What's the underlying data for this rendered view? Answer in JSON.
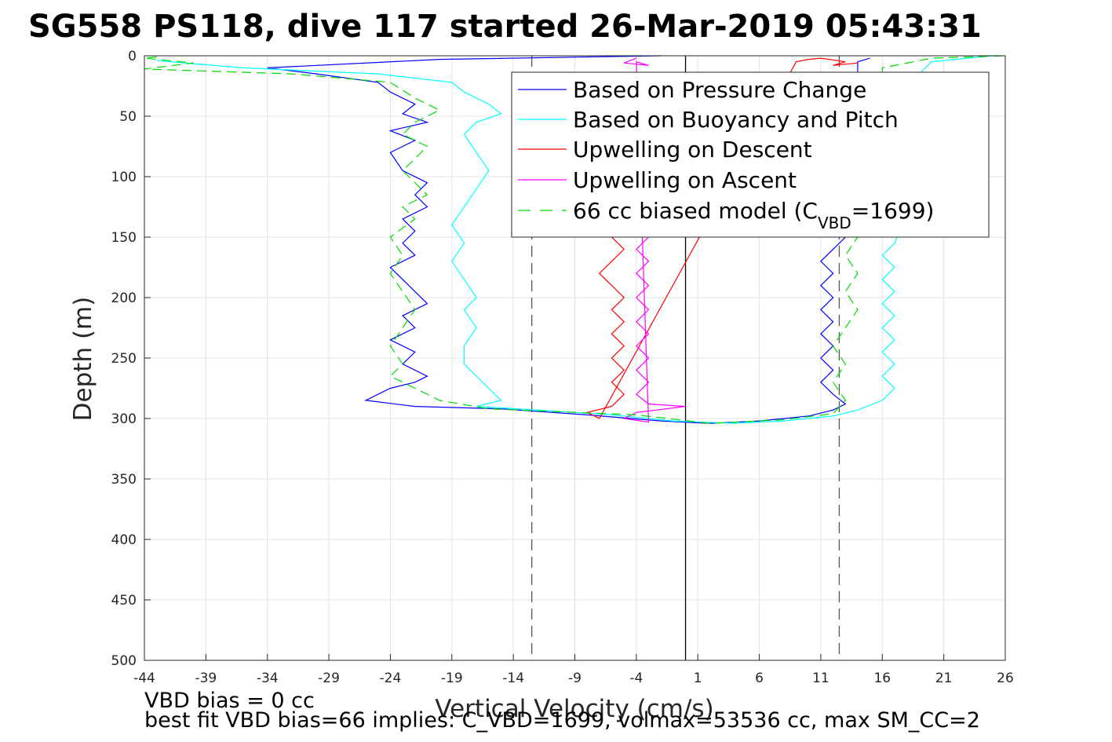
{
  "title": "SG558 PS118, dive 117 started 26-Mar-2019 05:43:31",
  "footnotes": {
    "line1": "VBD bias = 0 cc",
    "line2": "best fit VBD bias=66 implies: C_VBD=1699, volmax=53536 cc, max SM_CC=2"
  },
  "chart_data": {
    "type": "line",
    "title": "SG558 PS118, dive 117 started 26-Mar-2019 05:43:31",
    "xlabel": "Vertical Velocity (cm/s)",
    "ylabel": "Depth (m)",
    "xlim": [
      -44,
      26
    ],
    "ylim": [
      0,
      500
    ],
    "y_reversed": true,
    "grid": true,
    "xticks": [
      -44,
      -39,
      -34,
      -29,
      -24,
      -19,
      -14,
      -9,
      -4,
      1,
      6,
      11,
      16,
      21,
      26
    ],
    "yticks": [
      0,
      50,
      100,
      150,
      200,
      250,
      300,
      350,
      400,
      450,
      500
    ],
    "legend_position": "top-right",
    "legend": [
      {
        "label": "Based on Pressure Change",
        "color": "#0000ff",
        "style": "solid"
      },
      {
        "label": "Based on Buoyancy and Pitch",
        "color": "#00ffff",
        "style": "solid"
      },
      {
        "label": "Upwelling on Descent",
        "color": "#ff0000",
        "style": "solid"
      },
      {
        "label": "Upwelling on Ascent",
        "color": "#ff00ff",
        "style": "solid"
      },
      {
        "label_prefix": "66 cc biased model (C",
        "label_sub": "VBD",
        "label_suffix": "=1699)",
        "color": "#00dd00",
        "style": "dashed"
      }
    ],
    "reference_lines": [
      {
        "x": 0,
        "color": "#000000",
        "style": "solid"
      },
      {
        "x": -12.5,
        "color": "#555555",
        "style": "dashed"
      },
      {
        "x": 12.5,
        "color": "#555555",
        "style": "dashed"
      }
    ],
    "series": [
      {
        "color": "#0000ff",
        "points": [
          [
            -2,
            0
          ],
          [
            -20,
            3
          ],
          [
            -34,
            10
          ],
          [
            -30,
            15
          ],
          [
            -25,
            22
          ],
          [
            -24,
            30
          ],
          [
            -22,
            40
          ],
          [
            -23,
            48
          ],
          [
            -21,
            55
          ],
          [
            -24,
            62
          ],
          [
            -22,
            70
          ],
          [
            -24,
            80
          ],
          [
            -23,
            95
          ],
          [
            -21,
            105
          ],
          [
            -22,
            115
          ],
          [
            -21,
            125
          ],
          [
            -23,
            135
          ],
          [
            -22,
            145
          ],
          [
            -23,
            155
          ],
          [
            -22,
            165
          ],
          [
            -24,
            175
          ],
          [
            -23,
            185
          ],
          [
            -22,
            195
          ],
          [
            -21,
            205
          ],
          [
            -23,
            215
          ],
          [
            -22,
            225
          ],
          [
            -24,
            235
          ],
          [
            -22,
            245
          ],
          [
            -23,
            255
          ],
          [
            -21,
            265
          ],
          [
            -22,
            270
          ],
          [
            -24,
            275
          ],
          [
            -26,
            285
          ],
          [
            -22,
            290
          ],
          [
            -15,
            292
          ],
          [
            -8,
            297
          ],
          [
            -2,
            302
          ],
          [
            2,
            304
          ],
          [
            6,
            302
          ],
          [
            10,
            298
          ],
          [
            12,
            293
          ],
          [
            13,
            288
          ],
          [
            12,
            280
          ],
          [
            11,
            270
          ],
          [
            12,
            260
          ],
          [
            11,
            250
          ],
          [
            12,
            240
          ],
          [
            11,
            230
          ],
          [
            12,
            220
          ],
          [
            11,
            210
          ],
          [
            12,
            200
          ],
          [
            11,
            190
          ],
          [
            12,
            180
          ],
          [
            11,
            170
          ],
          [
            12,
            160
          ],
          [
            13,
            150
          ],
          [
            12,
            130
          ],
          [
            13,
            110
          ],
          [
            12,
            90
          ],
          [
            13,
            70
          ],
          [
            12,
            50
          ],
          [
            13,
            30
          ],
          [
            14,
            15
          ],
          [
            14,
            5
          ],
          [
            15,
            2
          ]
        ]
      },
      {
        "color": "#00ffff",
        "points": [
          [
            -43,
            4
          ],
          [
            -36,
            10
          ],
          [
            -25,
            15
          ],
          [
            -19,
            22
          ],
          [
            -18,
            30
          ],
          [
            -16,
            40
          ],
          [
            -15,
            48
          ],
          [
            -17,
            55
          ],
          [
            -18,
            65
          ],
          [
            -17,
            80
          ],
          [
            -16,
            95
          ],
          [
            -17,
            110
          ],
          [
            -18,
            125
          ],
          [
            -19,
            140
          ],
          [
            -18,
            155
          ],
          [
            -19,
            170
          ],
          [
            -18,
            185
          ],
          [
            -17,
            200
          ],
          [
            -18,
            210
          ],
          [
            -17,
            225
          ],
          [
            -18,
            240
          ],
          [
            -18,
            255
          ],
          [
            -17,
            265
          ],
          [
            -16,
            275
          ],
          [
            -15,
            285
          ],
          [
            -17,
            290
          ],
          [
            -12,
            293
          ],
          [
            -6,
            297
          ],
          [
            -1,
            302
          ],
          [
            4,
            304
          ],
          [
            8,
            302
          ],
          [
            12,
            298
          ],
          [
            14,
            293
          ],
          [
            16,
            285
          ],
          [
            17,
            275
          ],
          [
            16,
            265
          ],
          [
            17,
            255
          ],
          [
            16,
            245
          ],
          [
            17,
            235
          ],
          [
            16,
            225
          ],
          [
            17,
            215
          ],
          [
            16,
            205
          ],
          [
            17,
            195
          ],
          [
            16,
            185
          ],
          [
            17,
            175
          ],
          [
            16,
            165
          ],
          [
            17,
            155
          ],
          [
            18,
            130
          ],
          [
            17,
            110
          ],
          [
            18,
            90
          ],
          [
            19,
            60
          ],
          [
            20,
            35
          ],
          [
            19,
            15
          ],
          [
            20,
            5
          ],
          [
            25,
            0
          ]
        ]
      },
      {
        "color": "#ff0000",
        "points": [
          [
            -6,
            150
          ],
          [
            -5,
            160
          ],
          [
            -6,
            170
          ],
          [
            -7,
            180
          ],
          [
            -6,
            190
          ],
          [
            -5,
            200
          ],
          [
            -6,
            210
          ],
          [
            -5,
            220
          ],
          [
            -6,
            230
          ],
          [
            -5,
            240
          ],
          [
            -6,
            250
          ],
          [
            -5,
            260
          ],
          [
            -6,
            270
          ],
          [
            -5,
            280
          ],
          [
            -6,
            290
          ],
          [
            -8,
            295
          ],
          [
            -7,
            300
          ],
          [
            9,
            5
          ],
          [
            10,
            3
          ],
          [
            11,
            2
          ],
          [
            13,
            5
          ],
          [
            12,
            8
          ],
          [
            14,
            6
          ]
        ]
      },
      {
        "color": "#ff00ff",
        "points": [
          [
            -3,
            150
          ],
          [
            -4,
            160
          ],
          [
            -3,
            170
          ],
          [
            -4,
            180
          ],
          [
            -3,
            190
          ],
          [
            -4,
            200
          ],
          [
            -3,
            210
          ],
          [
            -4,
            220
          ],
          [
            -3,
            230
          ],
          [
            -4,
            240
          ],
          [
            -3,
            250
          ],
          [
            -4,
            260
          ],
          [
            -3,
            270
          ],
          [
            -4,
            280
          ],
          [
            -3,
            288
          ],
          [
            0,
            290
          ],
          [
            -4,
            295
          ],
          [
            -5,
            300
          ],
          [
            -3,
            303
          ],
          [
            -4,
            5
          ],
          [
            -3,
            8
          ],
          [
            -5,
            6
          ],
          [
            -4,
            2
          ]
        ]
      },
      {
        "color": "#00dd00",
        "dashed": true,
        "points": [
          [
            -43,
            1
          ],
          [
            -44,
            2
          ],
          [
            -40,
            6
          ],
          [
            -44,
            11
          ],
          [
            -32,
            15
          ],
          [
            -24,
            22
          ],
          [
            -22,
            35
          ],
          [
            -20,
            45
          ],
          [
            -22,
            55
          ],
          [
            -23,
            65
          ],
          [
            -21,
            75
          ],
          [
            -22,
            85
          ],
          [
            -23,
            95
          ],
          [
            -22,
            105
          ],
          [
            -21,
            115
          ],
          [
            -23,
            125
          ],
          [
            -22,
            135
          ],
          [
            -24,
            150
          ],
          [
            -23,
            165
          ],
          [
            -24,
            180
          ],
          [
            -23,
            195
          ],
          [
            -22,
            210
          ],
          [
            -23,
            225
          ],
          [
            -24,
            240
          ],
          [
            -23,
            255
          ],
          [
            -24,
            265
          ],
          [
            -22,
            275
          ],
          [
            -20,
            285
          ],
          [
            -16,
            292
          ],
          [
            -4,
            297
          ],
          [
            2,
            304
          ],
          [
            8,
            301
          ],
          [
            12,
            296
          ],
          [
            13,
            285
          ],
          [
            12,
            270
          ],
          [
            13,
            255
          ],
          [
            12,
            240
          ],
          [
            13,
            225
          ],
          [
            14,
            210
          ],
          [
            13,
            195
          ],
          [
            14,
            180
          ],
          [
            13,
            165
          ],
          [
            14,
            150
          ],
          [
            14,
            120
          ],
          [
            15,
            90
          ],
          [
            14,
            60
          ],
          [
            16,
            30
          ],
          [
            16,
            10
          ],
          [
            20,
            2
          ],
          [
            26,
            0
          ]
        ]
      }
    ]
  }
}
